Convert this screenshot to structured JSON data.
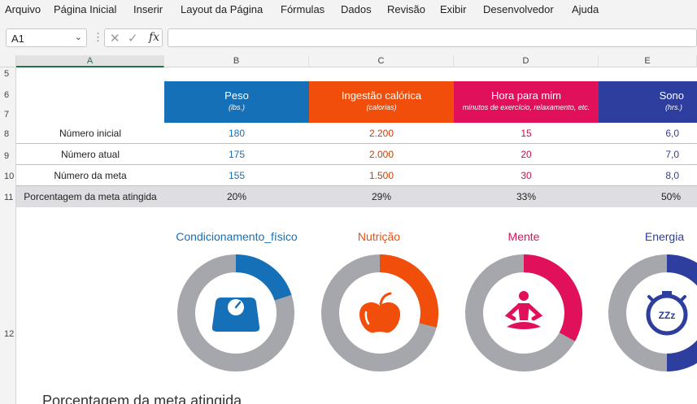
{
  "menu": [
    "Arquivo",
    "Página Inicial",
    "Inserir",
    "Layout da Página",
    "Fórmulas",
    "Dados",
    "Revisão",
    "Exibir",
    "Desenvolvedor",
    "Ajuda"
  ],
  "formula_bar": {
    "name_box": "A1",
    "fx_label": "fx",
    "formula": ""
  },
  "columns": [
    "A",
    "B",
    "C",
    "D",
    "E"
  ],
  "rows": [
    "5",
    "6",
    "7",
    "8",
    "9",
    "10",
    "11",
    "12"
  ],
  "colors": {
    "weight": "#1570b8",
    "calories": "#f04e0a",
    "mind": "#e0105a",
    "sleep": "#2e3e9e",
    "ring_gray": "#a6a7ad",
    "pct_row": "#dedee2"
  },
  "metrics": [
    {
      "title": "Peso",
      "subtitle": "(lbs.)",
      "start": "180",
      "current": "175",
      "goal": "155",
      "pct_text": "20%",
      "pct": 0.2,
      "donut_title": "Condicionamento_físico",
      "icon": "scale-icon"
    },
    {
      "title": "Ingestão calórica",
      "subtitle": "(calorias)",
      "start": "2.200",
      "current": "2.000",
      "goal": "1.500",
      "pct_text": "29%",
      "pct": 0.29,
      "donut_title": "Nutrição",
      "icon": "apple-icon"
    },
    {
      "title": "Hora para mim",
      "subtitle": "minutos de exercício, relaxamento, etc.",
      "start": "15",
      "current": "20",
      "goal": "30",
      "pct_text": "33%",
      "pct": 0.33,
      "donut_title": "Mente",
      "icon": "meditation-icon"
    },
    {
      "title": "Sono",
      "subtitle": "(hrs.)",
      "start": "6,0",
      "current": "7,0",
      "goal": "8,0",
      "pct_text": "50%",
      "pct": 0.5,
      "donut_title": "Energia",
      "icon": "alarm-clock-icon"
    }
  ],
  "row_labels": {
    "start": "Número inicial",
    "current": "Número atual",
    "goal": "Número da meta",
    "pct": "Porcentagem da meta atingida"
  },
  "sleep_icon_text": "ZZz",
  "bottom_title": "Porcentagem da meta atingida"
}
